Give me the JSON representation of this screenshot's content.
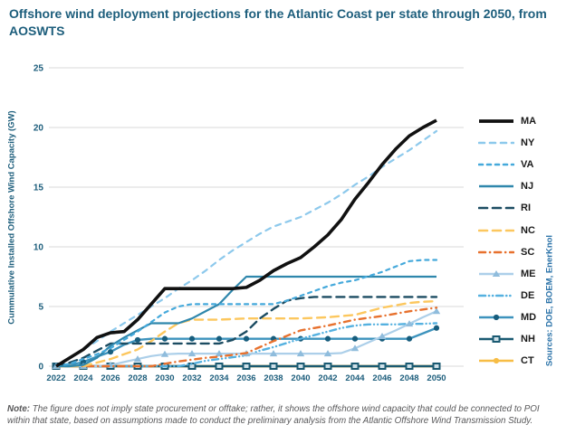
{
  "title": "Offshore wind deployment projections for the Atlantic Coast per state through 2050, from AOSWTS",
  "source_note": "Sources: DOE, BOEM, EnerKnol",
  "footnote": {
    "label": "Note:",
    "text": " The figure does not imply state procurement or offtake; rather, it shows the offshore wind capacity that could be connected to POI within that state, based on assumptions made to conduct the preliminary analysis from the Atlantic Offshore Wind Transmission Study."
  },
  "colors": {
    "title_text": "#1d5e7c",
    "axis_text": "#1d5e7c",
    "gridline": "#d9d9d9",
    "source_text": "#2a72a8",
    "note_text": "#58585a"
  },
  "chart_data": {
    "type": "line",
    "title": "Offshore wind deployment projections for the Atlantic Coast per state through 2050, from AOSWTS",
    "xlabel": "",
    "ylabel": "Cummulative Installed Offshore Wind Capacity (GW)",
    "ylim": [
      0,
      25
    ],
    "yticks": [
      0,
      5,
      10,
      15,
      20,
      25
    ],
    "xticks": [
      2022,
      2024,
      2026,
      2028,
      2030,
      2032,
      2034,
      2036,
      2038,
      2040,
      2042,
      2044,
      2046,
      2048,
      2050
    ],
    "grid": true,
    "legend_position": "right",
    "x": [
      2022,
      2023,
      2024,
      2025,
      2026,
      2027,
      2028,
      2029,
      2030,
      2031,
      2032,
      2033,
      2034,
      2035,
      2036,
      2037,
      2038,
      2039,
      2040,
      2041,
      2042,
      2043,
      2044,
      2045,
      2046,
      2047,
      2048,
      2049,
      2050
    ],
    "series": [
      {
        "name": "MA",
        "color": "#111111",
        "width": 3.6,
        "dash": "",
        "marker": "none",
        "marker_color": "#111111",
        "values": [
          0,
          0.7,
          1.4,
          2.4,
          2.8,
          2.9,
          3.9,
          5.2,
          6.5,
          6.5,
          6.5,
          6.5,
          6.5,
          6.5,
          6.6,
          7.2,
          8.0,
          8.6,
          9.1,
          10.0,
          11.0,
          12.3,
          14.0,
          15.4,
          16.9,
          18.2,
          19.3,
          20.0,
          20.6
        ]
      },
      {
        "name": "NY",
        "color": "#8dc9ec",
        "width": 2.2,
        "dash": "6 6",
        "marker": "none",
        "marker_color": "#8dc9ec",
        "values": [
          0,
          0.7,
          1.4,
          2.1,
          2.9,
          3.6,
          4.3,
          5.0,
          5.7,
          6.5,
          7.2,
          8.0,
          8.9,
          9.7,
          10.4,
          11.1,
          11.7,
          12.1,
          12.5,
          13.1,
          13.7,
          14.4,
          15.2,
          15.9,
          16.7,
          17.4,
          18.1,
          18.9,
          19.7
        ]
      },
      {
        "name": "VA",
        "color": "#45a9db",
        "width": 2.2,
        "dash": "4 5",
        "marker": "none",
        "marker_color": "#45a9db",
        "values": [
          0,
          0.2,
          0.6,
          1.0,
          1.5,
          2.2,
          2.9,
          3.7,
          4.5,
          5.0,
          5.2,
          5.2,
          5.2,
          5.2,
          5.2,
          5.2,
          5.2,
          5.5,
          5.9,
          6.3,
          6.7,
          7.0,
          7.2,
          7.55,
          7.9,
          8.35,
          8.8,
          8.9,
          8.9
        ]
      },
      {
        "name": "NJ",
        "color": "#2f87ac",
        "width": 2.2,
        "dash": "",
        "marker": "none",
        "marker_color": "#2f87ac",
        "values": [
          0,
          0,
          0.1,
          0.7,
          1.7,
          2.4,
          3.0,
          3.6,
          3.6,
          3.6,
          4.0,
          4.6,
          5.2,
          6.4,
          7.5,
          7.5,
          7.5,
          7.5,
          7.5,
          7.5,
          7.5,
          7.5,
          7.5,
          7.5,
          7.5,
          7.5,
          7.5,
          7.5,
          7.5
        ]
      },
      {
        "name": "RI",
        "color": "#1c4c62",
        "width": 2.4,
        "dash": "9 6",
        "marker": "none",
        "marker_color": "#1c4c62",
        "values": [
          0,
          0.3,
          0.7,
          1.3,
          1.9,
          1.9,
          1.9,
          1.9,
          1.9,
          1.9,
          1.9,
          1.9,
          1.9,
          2.2,
          2.9,
          4.0,
          4.8,
          5.5,
          5.7,
          5.8,
          5.8,
          5.8,
          5.8,
          5.8,
          5.8,
          5.8,
          5.8,
          5.8,
          5.8
        ]
      },
      {
        "name": "NC",
        "color": "#fcc75e",
        "width": 2.4,
        "dash": "9 6",
        "marker": "none",
        "marker_color": "#fcc75e",
        "values": [
          0,
          0,
          0,
          0.3,
          0.6,
          1.0,
          1.4,
          2.1,
          2.9,
          3.6,
          3.9,
          3.9,
          3.9,
          3.95,
          4.0,
          4.0,
          4.0,
          4.0,
          4.0,
          4.05,
          4.1,
          4.2,
          4.3,
          4.6,
          4.9,
          5.1,
          5.3,
          5.4,
          5.45
        ]
      },
      {
        "name": "SC",
        "color": "#e7712e",
        "width": 2.4,
        "dash": "7 5 0.1 5",
        "marker": "none",
        "marker_color": "#e7712e",
        "values": [
          0,
          0,
          0,
          0,
          0,
          0,
          0,
          0,
          0.2,
          0.4,
          0.55,
          0.7,
          0.8,
          0.95,
          1.1,
          1.6,
          2.1,
          2.55,
          3.0,
          3.2,
          3.4,
          3.65,
          3.9,
          4.05,
          4.2,
          4.4,
          4.6,
          4.75,
          4.9
        ]
      },
      {
        "name": "ME",
        "color": "#accfe9",
        "width": 2.2,
        "dash": "",
        "marker": "triangle",
        "marker_color": "#8fbcdc",
        "values": [
          0,
          0,
          0,
          0,
          0.1,
          0.35,
          0.6,
          0.85,
          1.0,
          1.05,
          1.05,
          1.05,
          1.05,
          1.05,
          1.05,
          1.05,
          1.05,
          1.05,
          1.05,
          1.05,
          1.05,
          1.1,
          1.5,
          2.0,
          2.5,
          3.0,
          3.55,
          4.1,
          4.6
        ]
      },
      {
        "name": "DE",
        "color": "#55b1e0",
        "width": 2.4,
        "dash": "7 4 0.1 4 0.1 4",
        "marker": "none",
        "marker_color": "#55b1e0",
        "values": [
          0,
          0,
          0,
          0,
          0,
          0,
          0,
          0,
          0,
          0,
          0.2,
          0.45,
          0.6,
          0.75,
          0.9,
          1.3,
          1.6,
          1.95,
          2.3,
          2.6,
          2.9,
          3.2,
          3.4,
          3.5,
          3.5,
          3.5,
          3.55,
          3.55,
          3.6
        ]
      },
      {
        "name": "MD",
        "color": "#3d93bd",
        "width": 2.4,
        "dash": "",
        "marker": "circle",
        "marker_color": "#175d7d",
        "values": [
          0,
          0.1,
          0.35,
          0.8,
          1.2,
          1.8,
          2.2,
          2.3,
          2.3,
          2.3,
          2.3,
          2.3,
          2.3,
          2.3,
          2.3,
          2.3,
          2.3,
          2.3,
          2.3,
          2.3,
          2.3,
          2.3,
          2.3,
          2.3,
          2.3,
          2.3,
          2.3,
          2.75,
          3.2
        ]
      },
      {
        "name": "NH",
        "color": "#1a5a72",
        "width": 2.4,
        "dash": "",
        "marker": "square",
        "marker_color": "#1a5a72",
        "values": [
          0,
          0,
          0,
          0,
          0,
          0,
          0,
          0,
          0,
          0,
          0,
          0,
          0,
          0,
          0,
          0,
          0,
          0,
          0,
          0,
          0,
          0,
          0,
          0,
          0,
          0,
          0,
          0,
          0
        ]
      },
      {
        "name": "CT",
        "color": "#f7bd45",
        "width": 2.8,
        "dash": "",
        "marker": "circle",
        "marker_color": "#f7bd45",
        "values": [
          0,
          0,
          0,
          0,
          0,
          0,
          0,
          0,
          0,
          0,
          0,
          0,
          0,
          0,
          0,
          0,
          0,
          0,
          0,
          0,
          0,
          0,
          0,
          0,
          0,
          0,
          0,
          0,
          0
        ]
      }
    ]
  }
}
